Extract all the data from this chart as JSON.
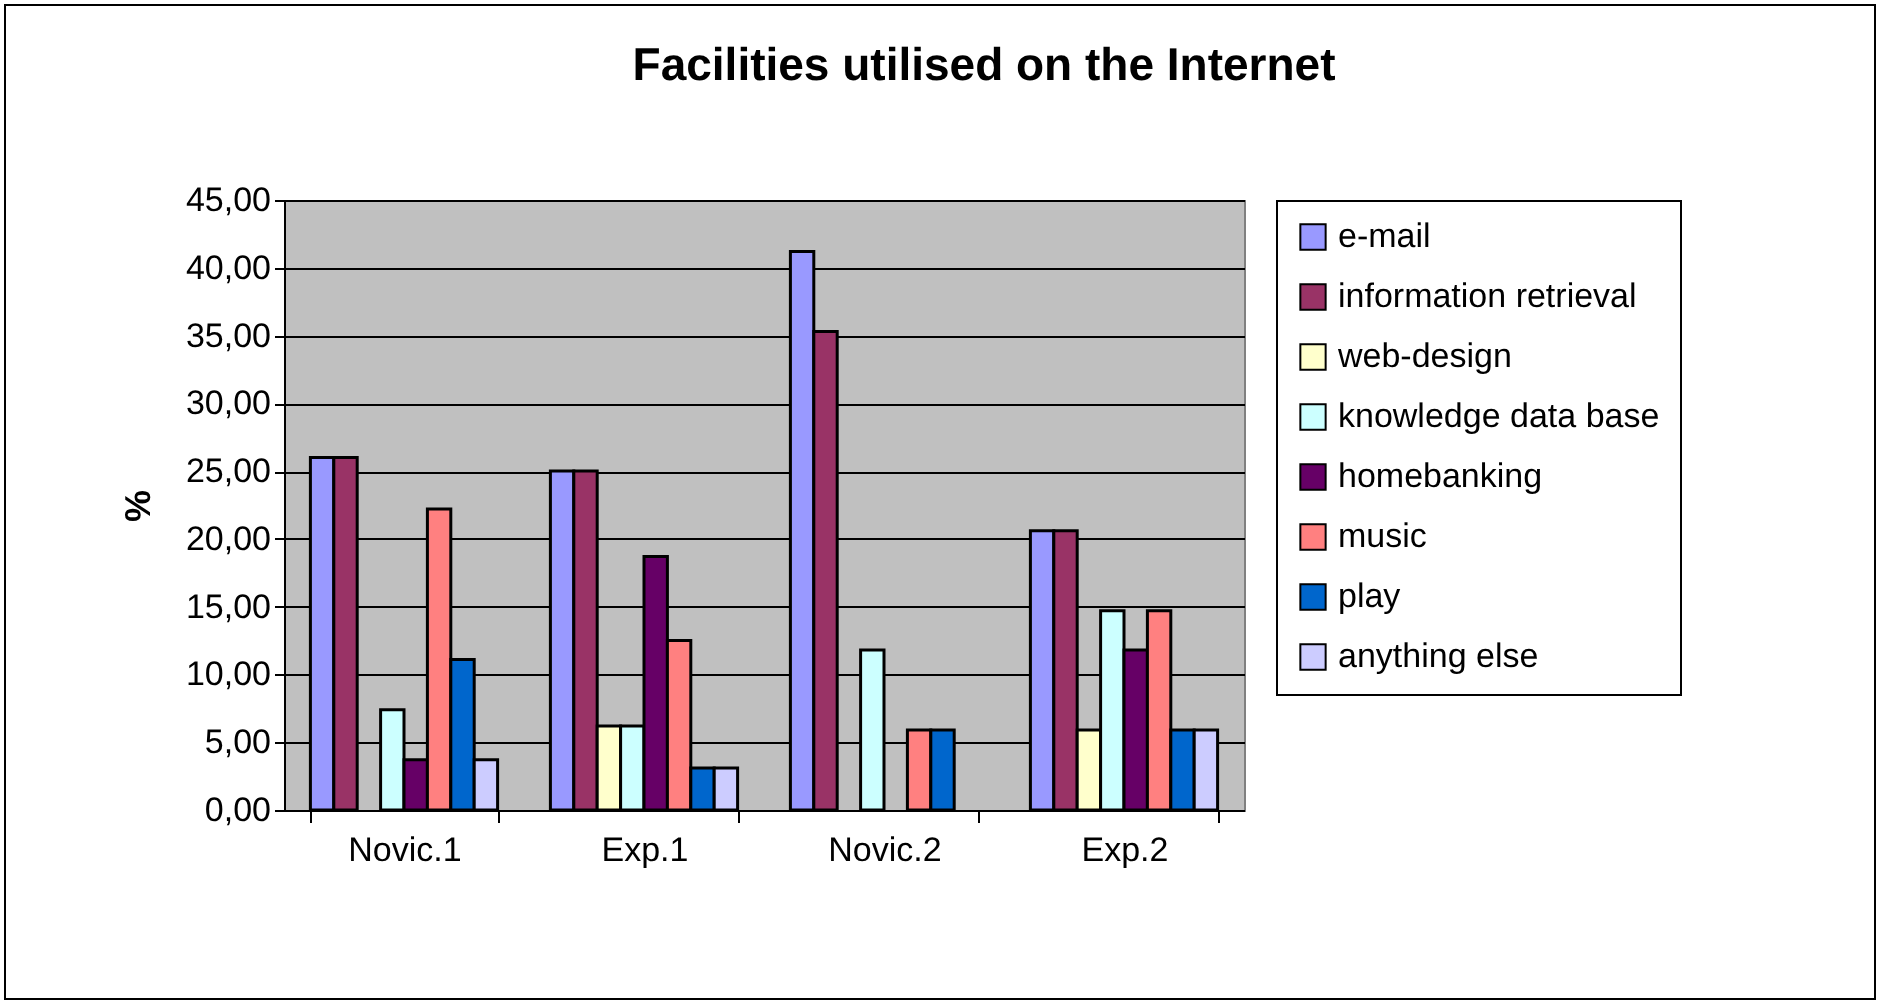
{
  "chart_data": {
    "type": "bar",
    "title": "Facilities utilised on the Internet",
    "ylabel": "%",
    "categories": [
      "Novic.1",
      "Exp.1",
      "Novic.2",
      "Exp.2"
    ],
    "series": [
      {
        "name": "e-mail",
        "color": "#9999ff",
        "values": [
          26.0,
          25.0,
          41.2,
          20.6
        ]
      },
      {
        "name": "information retrieval",
        "color": "#993366",
        "values": [
          26.0,
          25.0,
          35.3,
          20.6
        ]
      },
      {
        "name": "web-design",
        "color": "#ffffcc",
        "values": [
          null,
          6.2,
          null,
          5.9
        ]
      },
      {
        "name": "knowledge data base",
        "color": "#ccffff",
        "values": [
          7.4,
          6.2,
          11.8,
          14.7
        ]
      },
      {
        "name": "homebanking",
        "color": "#660066",
        "values": [
          3.7,
          18.7,
          null,
          11.8
        ]
      },
      {
        "name": "music",
        "color": "#ff8080",
        "values": [
          22.2,
          12.5,
          5.9,
          14.7
        ]
      },
      {
        "name": "play",
        "color": "#0066cc",
        "values": [
          11.1,
          3.1,
          5.9,
          5.9
        ]
      },
      {
        "name": "anything else",
        "color": "#ccccff",
        "values": [
          3.7,
          3.1,
          null,
          5.9
        ]
      }
    ],
    "ylim": [
      0,
      45
    ],
    "yticks": [
      {
        "value": 0,
        "label": "0,00"
      },
      {
        "value": 5,
        "label": "5,00"
      },
      {
        "value": 10,
        "label": "10,00"
      },
      {
        "value": 15,
        "label": "15,00"
      },
      {
        "value": 20,
        "label": "20,00"
      },
      {
        "value": 25,
        "label": "25,00"
      },
      {
        "value": 30,
        "label": "30,00"
      },
      {
        "value": 35,
        "label": "35,00"
      },
      {
        "value": 40,
        "label": "40,00"
      },
      {
        "value": 45,
        "label": "45,00"
      }
    ],
    "grid": "y",
    "legend": "right"
  }
}
